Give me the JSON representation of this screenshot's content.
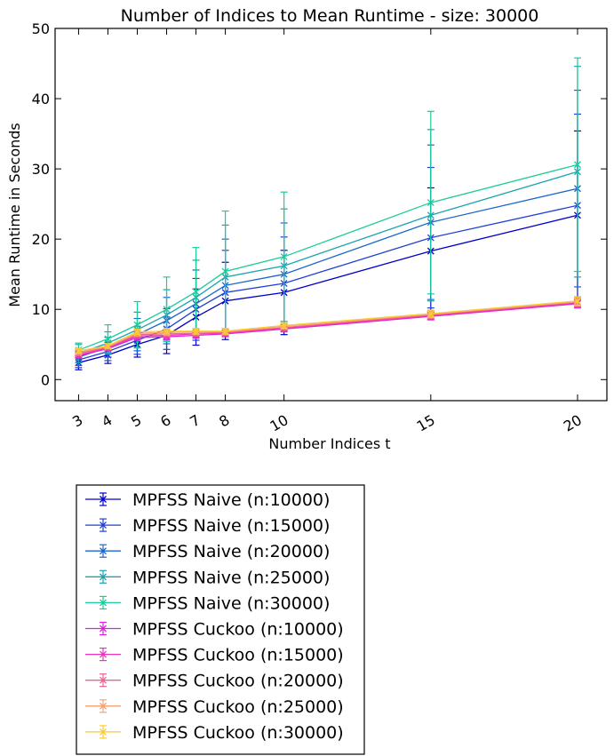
{
  "chart_data": {
    "type": "line",
    "title": "Number of Indices to Mean Runtime - size: 30000",
    "xlabel": "Number Indices t",
    "ylabel": "Mean Runtime in Seconds",
    "x": [
      3,
      4,
      5,
      6,
      7,
      8,
      10,
      15,
      20
    ],
    "x_ticks": [
      "3",
      "4",
      "5",
      "6",
      "7",
      "8",
      "10",
      "15",
      "20"
    ],
    "xlim": [
      2.2,
      21
    ],
    "ylim": [
      -3,
      50
    ],
    "y_ticks": [
      0,
      10,
      20,
      30,
      40,
      50
    ],
    "grid": false,
    "legend_position": "below plot",
    "marker": "x",
    "error_bars": true,
    "series": [
      {
        "name": "MPFSS Naive (n:10000)",
        "color": "#0000cc",
        "values": [
          2.4,
          3.5,
          5.0,
          6.3,
          8.9,
          11.2,
          12.4,
          18.3,
          23.4
        ],
        "errors": [
          1.0,
          1.2,
          1.8,
          2.6,
          4.0,
          5.5,
          6.0,
          9.0,
          12.0
        ]
      },
      {
        "name": "MPFSS Naive (n:15000)",
        "color": "#1f40d6",
        "values": [
          2.8,
          4.0,
          5.6,
          7.2,
          10.0,
          12.4,
          13.7,
          20.2,
          24.8
        ],
        "errors": [
          1.1,
          1.3,
          2.0,
          2.9,
          4.4,
          6.0,
          6.6,
          10.0,
          13.0
        ]
      },
      {
        "name": "MPFSS Naive (n:20000)",
        "color": "#1a66cc",
        "values": [
          3.2,
          4.6,
          6.4,
          8.4,
          10.8,
          13.4,
          15.0,
          22.4,
          27.2
        ],
        "errors": [
          1.2,
          1.4,
          2.3,
          3.3,
          4.8,
          6.6,
          7.3,
          11.0,
          14.0
        ]
      },
      {
        "name": "MPFSS Naive (n:25000)",
        "color": "#1aa3b0",
        "values": [
          3.7,
          5.2,
          7.1,
          9.2,
          11.7,
          14.6,
          16.2,
          23.4,
          29.6
        ],
        "errors": [
          1.3,
          1.6,
          2.5,
          3.6,
          5.3,
          7.4,
          8.1,
          12.2,
          15.0
        ]
      },
      {
        "name": "MPFSS Naive (n:30000)",
        "color": "#1acc99",
        "values": [
          4.2,
          5.8,
          7.8,
          10.0,
          12.5,
          15.4,
          17.5,
          25.2,
          30.6
        ],
        "errors": [
          1.0,
          2.0,
          3.3,
          4.6,
          6.3,
          8.6,
          9.2,
          13.0,
          15.2
        ]
      },
      {
        "name": "MPFSS Cuckoo (n:10000)",
        "color": "#dd22dd",
        "values": [
          3.4,
          4.4,
          6.0,
          6.1,
          6.3,
          6.5,
          7.2,
          9.0,
          10.8
        ],
        "errors": [
          0.3,
          0.3,
          0.4,
          0.4,
          0.4,
          0.4,
          0.4,
          0.5,
          0.6
        ]
      },
      {
        "name": "MPFSS Cuckoo (n:15000)",
        "color": "#ee33bb",
        "values": [
          3.5,
          4.5,
          6.2,
          6.3,
          6.5,
          6.6,
          7.3,
          9.1,
          10.9
        ],
        "errors": [
          0.3,
          0.3,
          0.4,
          0.4,
          0.4,
          0.4,
          0.4,
          0.5,
          0.6
        ]
      },
      {
        "name": "MPFSS Cuckoo (n:20000)",
        "color": "#f06090",
        "values": [
          3.7,
          4.6,
          6.4,
          6.5,
          6.6,
          6.7,
          7.4,
          9.2,
          11.0
        ],
        "errors": [
          0.3,
          0.3,
          0.4,
          0.4,
          0.4,
          0.4,
          0.4,
          0.5,
          0.6
        ]
      },
      {
        "name": "MPFSS Cuckoo (n:25000)",
        "color": "#f8a070",
        "values": [
          3.9,
          4.7,
          6.6,
          6.7,
          6.8,
          6.8,
          7.6,
          9.3,
          11.1
        ],
        "errors": [
          0.3,
          0.3,
          0.4,
          0.4,
          0.4,
          0.4,
          0.4,
          0.5,
          0.6
        ]
      },
      {
        "name": "MPFSS Cuckoo (n:30000)",
        "color": "#f8cc33",
        "values": [
          4.1,
          4.8,
          6.8,
          6.9,
          6.9,
          6.9,
          7.7,
          9.4,
          11.2
        ],
        "errors": [
          0.3,
          0.3,
          0.4,
          0.4,
          0.4,
          0.4,
          0.4,
          0.5,
          0.6
        ]
      }
    ]
  }
}
